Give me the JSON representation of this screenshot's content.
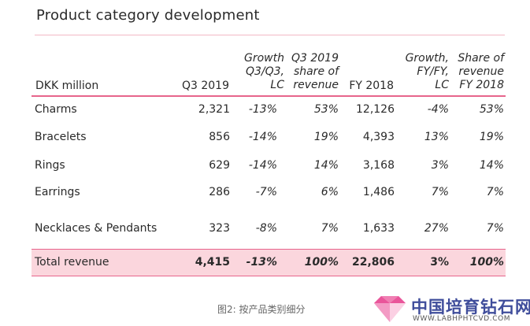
{
  "title": "Product category development",
  "columns": {
    "label": "DKK million",
    "q3": "Q3 2019",
    "growth_q3": [
      "Growth",
      "Q3/Q3,",
      "LC"
    ],
    "share_q3": [
      "Q3 2019",
      "share of",
      "revenue"
    ],
    "fy": "FY 2018",
    "growth_fy": [
      "Growth,",
      "FY/FY,",
      "LC"
    ],
    "share_fy": [
      "Share of",
      "revenue",
      "FY 2018"
    ]
  },
  "rows": [
    {
      "label": "Charms",
      "q3": "2,321",
      "growth_q3": "-13%",
      "share_q3": "53%",
      "fy": "12,126",
      "growth_fy": "-4%",
      "share_fy": "53%"
    },
    {
      "label": "Bracelets",
      "q3": "856",
      "growth_q3": "-14%",
      "share_q3": "19%",
      "fy": "4,393",
      "growth_fy": "13%",
      "share_fy": "19%"
    },
    {
      "label": "Rings",
      "q3": "629",
      "growth_q3": "-14%",
      "share_q3": "14%",
      "fy": "3,168",
      "growth_fy": "3%",
      "share_fy": "14%"
    },
    {
      "label": "Earrings",
      "q3": "286",
      "growth_q3": "-7%",
      "share_q3": "6%",
      "fy": "1,486",
      "growth_fy": "7%",
      "share_fy": "7%"
    },
    {
      "label": "Necklaces & Pendants",
      "q3": "323",
      "growth_q3": "-8%",
      "share_q3": "7%",
      "fy": "1,633",
      "growth_fy": "27%",
      "share_fy": "7%"
    }
  ],
  "total": {
    "label": "Total revenue",
    "q3": "4,415",
    "growth_q3": "-13%",
    "share_q3": "100%",
    "fy": "22,806",
    "growth_fy": "3%",
    "share_fy": "100%"
  },
  "caption": "图2: 按产品类别细分",
  "watermark": {
    "name": "中国培育钻石网",
    "url": "WWW.LABHPHTCVD.COM",
    "icon": "diamond-logo-icon",
    "colors": {
      "text": "#3f4d9b",
      "diamond_top": "#e9559a",
      "diamond_bottom": "#f6b7d3"
    }
  },
  "accent_color": "#e7658c",
  "total_band_color": "#fbd6dd"
}
